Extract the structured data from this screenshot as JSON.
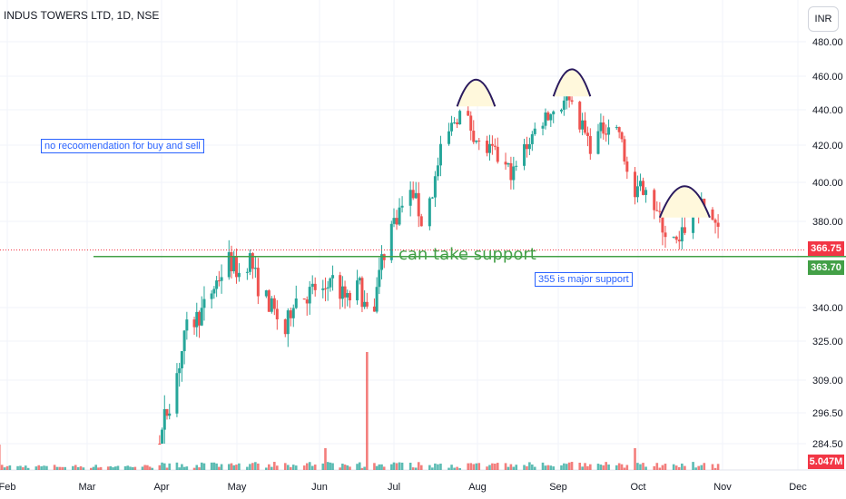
{
  "header": {
    "symbol_label": "INDUS TOWERS LTD, 1D, NSE",
    "currency_button": "INR"
  },
  "annotations": {
    "no_reco": "no recoomendation for buy and sell",
    "support_text": "can take support",
    "major_support": "355 is major support"
  },
  "price_tags": {
    "last_price": "366.75",
    "support_price": "363.70",
    "volume": "5.047M"
  },
  "colors": {
    "up": "#26a69a",
    "down": "#ef5350",
    "support_line": "#43a047",
    "last_price": "#f23645",
    "volume_tag": "#f23645",
    "arc": "#2a1a5e",
    "arc_fill": "#fff8dc"
  },
  "chart_data": {
    "type": "candlestick",
    "symbol": "INDUS TOWERS LTD",
    "interval": "1D",
    "exchange": "NSE",
    "currency": "INR",
    "y_ticks": [
      "480.00",
      "460.00",
      "440.00",
      "420.00",
      "400.00",
      "380.00",
      "340.00",
      "325.00",
      "309.00",
      "296.50",
      "284.50"
    ],
    "x_ticks": [
      "Feb",
      "Mar",
      "Apr",
      "May",
      "Jun",
      "Jul",
      "Aug",
      "Sep",
      "Oct",
      "Nov",
      "Dec"
    ],
    "y_scale": "log",
    "ylim": [
      276,
      486
    ],
    "grid": true,
    "last_price": 366.75,
    "support_level": 363.7,
    "last_volume": "5.047M",
    "price_path": [
      [
        "2024-04-01",
        284
      ],
      [
        "2024-04-03",
        294
      ],
      [
        "2024-04-08",
        312
      ],
      [
        "2024-04-12",
        330
      ],
      [
        "2024-04-18",
        338
      ],
      [
        "2024-04-24",
        352
      ],
      [
        "2024-04-29",
        362
      ],
      [
        "2024-05-03",
        356
      ],
      [
        "2024-05-07",
        363
      ],
      [
        "2024-05-10",
        350
      ],
      [
        "2024-05-14",
        342
      ],
      [
        "2024-05-20",
        329
      ],
      [
        "2024-05-23",
        344
      ],
      [
        "2024-05-28",
        346
      ],
      [
        "2024-06-01",
        350
      ],
      [
        "2024-06-04",
        345
      ],
      [
        "2024-06-06",
        355
      ],
      [
        "2024-06-10",
        347
      ],
      [
        "2024-06-13",
        343
      ],
      [
        "2024-06-18",
        350
      ],
      [
        "2024-06-21",
        336
      ],
      [
        "2024-06-24",
        342
      ],
      [
        "2024-06-27",
        362
      ],
      [
        "2024-07-01",
        378
      ],
      [
        "2024-07-05",
        388
      ],
      [
        "2024-07-09",
        395
      ],
      [
        "2024-07-12",
        380
      ],
      [
        "2024-07-16",
        395
      ],
      [
        "2024-07-19",
        416
      ],
      [
        "2024-07-24",
        434
      ],
      [
        "2024-07-27",
        440
      ],
      [
        "2024-07-30",
        430
      ],
      [
        "2024-08-02",
        420
      ],
      [
        "2024-08-07",
        416
      ],
      [
        "2024-08-12",
        408
      ],
      [
        "2024-08-15",
        405
      ],
      [
        "2024-08-19",
        418
      ],
      [
        "2024-08-23",
        428
      ],
      [
        "2024-08-27",
        437
      ],
      [
        "2024-09-02",
        442
      ],
      [
        "2024-09-04",
        455
      ],
      [
        "2024-09-06",
        444
      ],
      [
        "2024-09-10",
        430
      ],
      [
        "2024-09-13",
        420
      ],
      [
        "2024-09-17",
        428
      ],
      [
        "2024-09-20",
        432
      ],
      [
        "2024-09-24",
        428
      ],
      [
        "2024-09-26",
        412
      ],
      [
        "2024-09-30",
        392
      ],
      [
        "2024-10-04",
        400
      ],
      [
        "2024-10-08",
        384
      ],
      [
        "2024-10-11",
        375
      ],
      [
        "2024-10-14",
        370
      ],
      [
        "2024-10-16",
        368
      ],
      [
        "2024-10-18",
        378
      ],
      [
        "2024-10-22",
        388
      ],
      [
        "2024-10-25",
        386
      ],
      [
        "2024-10-29",
        380
      ],
      [
        "2024-10-31",
        366.75
      ]
    ],
    "volume_spikes": [
      [
        "2024-01-29",
        "high"
      ],
      [
        "2024-06-04",
        "high"
      ],
      [
        "2024-06-21",
        "very high"
      ],
      [
        "2024-09-30",
        "high"
      ]
    ]
  }
}
